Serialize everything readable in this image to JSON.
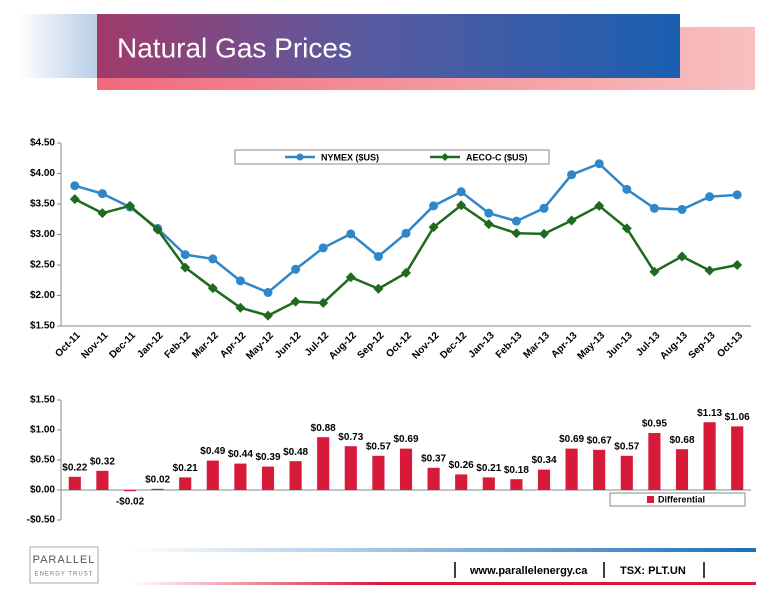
{
  "title": "Natural Gas Prices",
  "chart_data": [
    {
      "type": "line",
      "categories": [
        "Oct-11",
        "Nov-11",
        "Dec-11",
        "Jan-12",
        "Feb-12",
        "Mar-12",
        "Apr-12",
        "May-12",
        "Jun-12",
        "Jul-12",
        "Aug-12",
        "Sep-12",
        "Oct-12",
        "Nov-12",
        "Dec-12",
        "Jan-13",
        "Feb-13",
        "Mar-13",
        "Apr-13",
        "May-13",
        "Jun-13",
        "Jul-13",
        "Aug-13",
        "Sep-13",
        "Oct-13"
      ],
      "series": [
        {
          "name": "NYMEX ($US)",
          "color": "#2f86c8",
          "marker": "circle",
          "values": [
            3.8,
            3.67,
            3.45,
            3.1,
            2.67,
            2.6,
            2.24,
            2.05,
            2.43,
            2.78,
            3.01,
            2.64,
            3.02,
            3.47,
            3.7,
            3.35,
            3.22,
            3.43,
            3.98,
            4.16,
            3.74,
            3.43,
            3.41,
            3.62,
            3.65
          ]
        },
        {
          "name": "AECO-C ($US)",
          "color": "#1e6a1e",
          "marker": "diamond",
          "values": [
            3.58,
            3.35,
            3.47,
            3.08,
            2.46,
            2.12,
            1.8,
            1.67,
            1.9,
            1.88,
            2.3,
            2.11,
            2.37,
            3.12,
            3.48,
            3.17,
            3.02,
            3.01,
            3.23,
            3.47,
            3.1,
            2.39,
            2.64,
            2.41,
            2.5
          ]
        }
      ],
      "ylim": [
        1.5,
        4.5
      ],
      "yticks": [
        {
          "value": 1.5,
          "label": "$1.50"
        },
        {
          "value": 2,
          "label": "$2.00"
        },
        {
          "value": 2.5,
          "label": "$2.50"
        },
        {
          "value": 3,
          "label": "$3.00"
        },
        {
          "value": 3.5,
          "label": "$3.50"
        },
        {
          "value": 4,
          "label": "$4.00"
        },
        {
          "value": 4.5,
          "label": "$4.50"
        }
      ],
      "legend": "top",
      "grid": false
    },
    {
      "type": "bar",
      "series": [
        {
          "name": "Differential",
          "color": "#d7193a",
          "values": [
            0.22,
            0.32,
            -0.02,
            0.02,
            0.21,
            0.49,
            0.44,
            0.39,
            0.48,
            0.88,
            0.73,
            0.57,
            0.69,
            0.37,
            0.26,
            0.21,
            0.18,
            0.34,
            0.69,
            0.67,
            0.57,
            0.95,
            0.68,
            1.13,
            1.06
          ],
          "value_labels": [
            "$0.22",
            "$0.32",
            "-$0.02",
            "$0.02",
            "$0.21",
            "$0.49",
            "$0.44",
            "$0.39",
            "$0.48",
            "$0.88",
            "$0.73",
            "$0.57",
            "$0.69",
            "$0.37",
            "$0.26",
            "$0.21",
            "$0.18",
            "$0.34",
            "$0.69",
            "$0.67",
            "$0.57",
            "$0.95",
            "$0.68",
            "$1.13",
            "$1.06"
          ]
        }
      ],
      "ylim": [
        -0.5,
        1.5
      ],
      "yticks": [
        {
          "value": -0.5,
          "label": "-$0.50"
        },
        {
          "value": 0,
          "label": "$0.00"
        },
        {
          "value": 0.5,
          "label": "$0.50"
        },
        {
          "value": 1,
          "label": "$1.00"
        },
        {
          "value": 1.5,
          "label": "$1.50"
        }
      ],
      "legend": "bottom-right",
      "grid": false
    }
  ],
  "footer": {
    "logo": "PARALLEL",
    "logo_sub": "ENERGY TRUST",
    "website": "www.parallelenergy.ca",
    "ticker": "TSX: PLT.UN"
  }
}
